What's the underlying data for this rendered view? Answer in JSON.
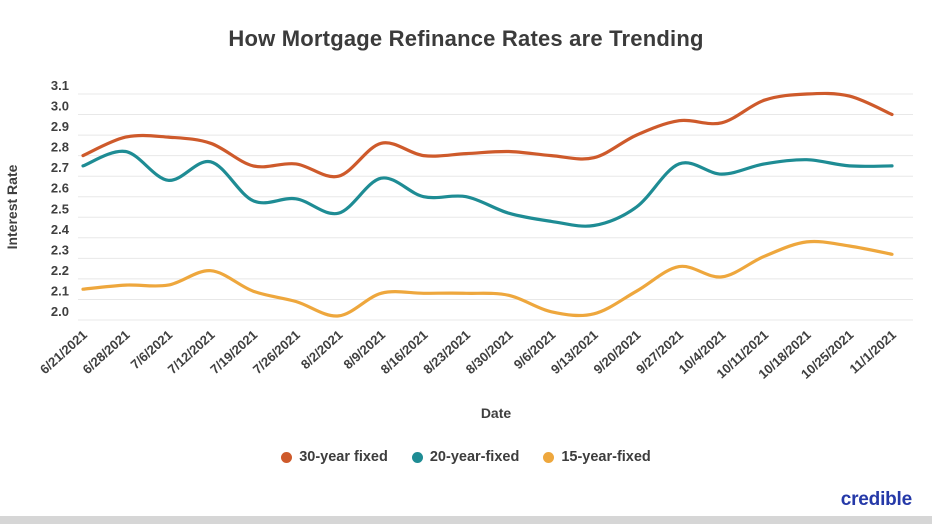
{
  "chart_data": {
    "type": "line",
    "title": "How Mortgage Refinance Rates are Trending",
    "xlabel": "Date",
    "ylabel": "Interest Rate",
    "ylim": [
      2.0,
      3.1
    ],
    "ytick_step": 0.1,
    "grid": true,
    "legend_position": "bottom",
    "y_tick_labels": [
      "3.1",
      "3.0",
      "2.9",
      "2.8",
      "2.7",
      "2.6",
      "2.5",
      "2.4",
      "2.3",
      "2.2",
      "2.1",
      "2.0"
    ],
    "categories": [
      "6/21/2021",
      "6/28/2021",
      "7/6/2021",
      "7/12/2021",
      "7/19/2021",
      "7/26/2021",
      "8/2/2021",
      "8/9/2021",
      "8/16/2021",
      "8/23/2021",
      "8/30/2021",
      "9/6/2021",
      "9/13/2021",
      "9/20/2021",
      "9/27/2021",
      "10/4/2021",
      "10/11/2021",
      "10/18/2021",
      "10/25/2021",
      "11/1/2021"
    ],
    "series": [
      {
        "name": "30-year fixed",
        "color": "#CE5A2B",
        "values": [
          2.8,
          2.89,
          2.89,
          2.86,
          2.75,
          2.76,
          2.7,
          2.86,
          2.8,
          2.81,
          2.82,
          2.8,
          2.79,
          2.9,
          2.97,
          2.96,
          3.07,
          3.1,
          3.09,
          3.0
        ]
      },
      {
        "name": "20-year-fixed",
        "color": "#1E8C94",
        "values": [
          2.75,
          2.82,
          2.68,
          2.77,
          2.58,
          2.59,
          2.52,
          2.69,
          2.6,
          2.6,
          2.52,
          2.48,
          2.46,
          2.55,
          2.76,
          2.71,
          2.76,
          2.78,
          2.75,
          2.75
        ]
      },
      {
        "name": "15-year-fixed",
        "color": "#EEA73D",
        "values": [
          2.15,
          2.17,
          2.17,
          2.24,
          2.14,
          2.09,
          2.02,
          2.13,
          2.13,
          2.13,
          2.12,
          2.04,
          2.03,
          2.14,
          2.26,
          2.21,
          2.31,
          2.38,
          2.36,
          2.32
        ]
      }
    ]
  },
  "branding": {
    "logo_text": "credible",
    "logo_color": "#2539A8"
  },
  "colors": {
    "background": "#ffffff",
    "gridline": "#e8e8e8",
    "text": "#3d3d3d",
    "bottom_strip": "#d6d6d6"
  }
}
